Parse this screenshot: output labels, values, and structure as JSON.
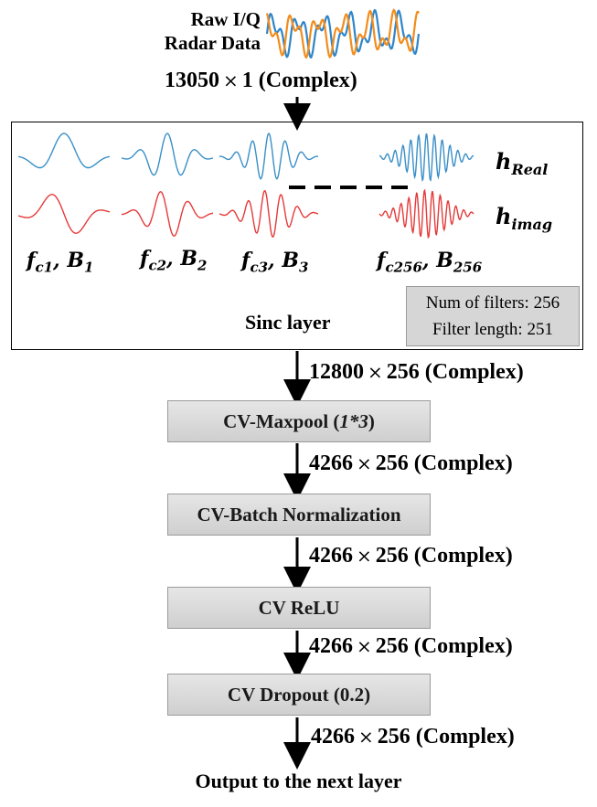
{
  "input": {
    "label_line1": "Raw I/Q",
    "label_line2": "Radar Data",
    "shape": "13050",
    "shape2": "1",
    "type": "(Complex)"
  },
  "sinc_layer": {
    "title": "Sinc layer",
    "h_real": "h",
    "h_real_sub": "Real",
    "h_imag": "h",
    "h_imag_sub": "imag",
    "filters": [
      {
        "f": "f",
        "f_sub": "c1",
        "b": "B",
        "b_sub": "1"
      },
      {
        "f": "f",
        "f_sub": "c2",
        "b": "B",
        "b_sub": "2"
      },
      {
        "f": "f",
        "f_sub": "c3",
        "b": "B",
        "b_sub": "3"
      },
      {
        "f": "f",
        "f_sub": "c256",
        "b": "B",
        "b_sub": "256"
      }
    ],
    "num_filters": "Num of filters: 256",
    "filter_length": "Filter length: 251"
  },
  "times_symbol": "×",
  "dims": [
    {
      "a": "12800",
      "b": "256",
      "type": "(Complex)"
    },
    {
      "a": "4266",
      "b": "256",
      "type": "(Complex)"
    },
    {
      "a": "4266",
      "b": "256",
      "type": "(Complex)"
    },
    {
      "a": "4266",
      "b": "256",
      "type": "(Complex)"
    },
    {
      "a": "4266",
      "b": "256",
      "type": "(Complex)"
    }
  ],
  "layers": {
    "maxpool_label": "CV-Maxpool (",
    "maxpool_arg": "1*3",
    "maxpool_close": ")",
    "batchnorm": "CV-Batch Normalization",
    "relu": "CV ReLU",
    "dropout": "CV Dropout (0.2)"
  },
  "output_label": "Output to the next layer",
  "colors": {
    "real_wave": "#3a8fc8",
    "imag_wave": "#e53a3a",
    "input_wave_a": "#2f86c9",
    "input_wave_b": "#f28c1c",
    "layer_fill": "#d9d9d9"
  }
}
